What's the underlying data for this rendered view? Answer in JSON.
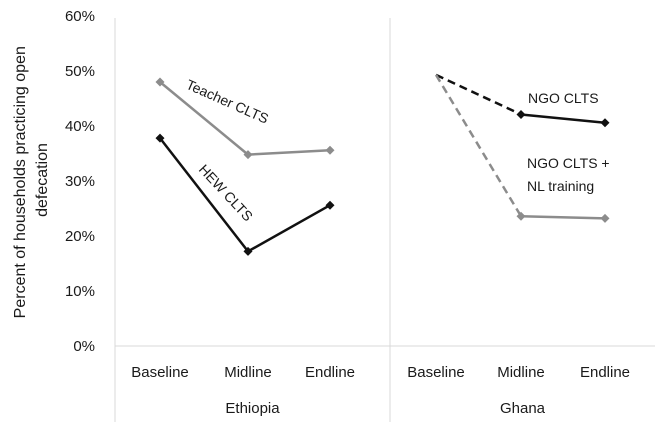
{
  "chart_data": {
    "type": "line",
    "ylabel_lines": [
      "Percent of households practicing open",
      "defecation"
    ],
    "ylim": [
      0,
      60
    ],
    "yticks": [
      "0%",
      "10%",
      "20%",
      "30%",
      "40%",
      "50%",
      "60%"
    ],
    "ytick_values": [
      0,
      10,
      20,
      30,
      40,
      50,
      60
    ],
    "grid": false,
    "groups": [
      {
        "name": "Ethiopia",
        "categories": [
          "Baseline",
          "Midline",
          "Endline"
        ]
      },
      {
        "name": "Ghana",
        "categories": [
          "Baseline",
          "Midline",
          "Endline"
        ]
      }
    ],
    "series": [
      {
        "group": 0,
        "label": "Teacher CLTS",
        "color": "#8c8c8c",
        "values": [
          48,
          34.8,
          35.6
        ],
        "dash_first_segment": false,
        "show_first_marker": true
      },
      {
        "group": 0,
        "label": "HEW CLTS",
        "color": "#111111",
        "values": [
          37.8,
          17.2,
          25.6
        ],
        "dash_first_segment": false,
        "show_first_marker": true
      },
      {
        "group": 1,
        "label": "NGO CLTS",
        "color": "#111111",
        "values": [
          49.3,
          42.1,
          40.6
        ],
        "dash_first_segment": true,
        "show_first_marker": false
      },
      {
        "group": 1,
        "label_lines": [
          "NGO CLTS +",
          "NL training"
        ],
        "color": "#8c8c8c",
        "values": [
          49.3,
          23.6,
          23.2
        ],
        "dash_first_segment": true,
        "show_first_marker": false
      }
    ]
  }
}
